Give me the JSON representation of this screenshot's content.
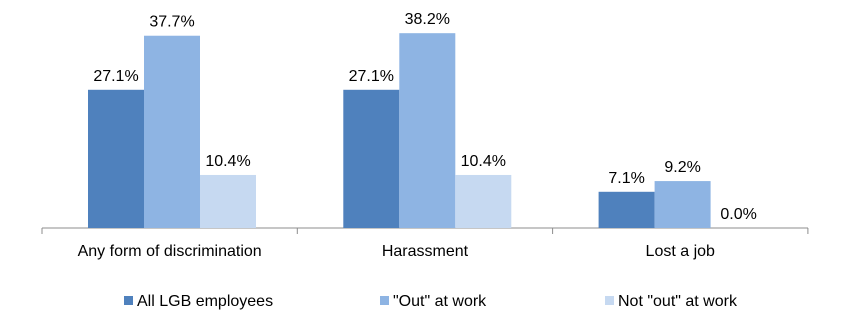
{
  "chart_data": {
    "type": "bar",
    "categories": [
      "Any form of discrimination",
      "Harassment",
      "Lost a job"
    ],
    "series": [
      {
        "name": "All LGB employees",
        "values": [
          27.1,
          27.1,
          7.1
        ],
        "labels": [
          "27.1%",
          "27.1%",
          "7.1%"
        ],
        "color": "#4f81bd"
      },
      {
        "name": "\"Out\" at work",
        "values": [
          37.7,
          38.2,
          9.2
        ],
        "labels": [
          "37.7%",
          "38.2%",
          "9.2%"
        ],
        "color": "#8eb4e3"
      },
      {
        "name": "Not \"out\" at work",
        "values": [
          10.4,
          10.4,
          0.0
        ],
        "labels": [
          "10.4%",
          "10.4%",
          "0.0%"
        ],
        "color": "#c6d9f1"
      }
    ],
    "ylim": [
      0,
      40
    ],
    "grid": false,
    "legend_position": "bottom"
  }
}
